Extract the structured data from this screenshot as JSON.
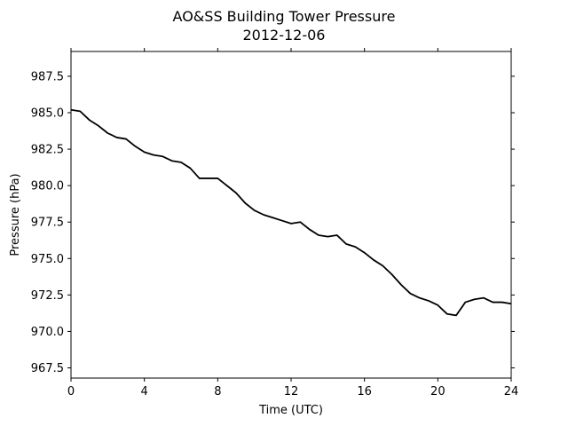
{
  "chart_data": {
    "type": "line",
    "title": "AO&SS Building Tower Pressure",
    "subtitle": "2012-12-06",
    "xlabel": "Time (UTC)",
    "ylabel": "Pressure (hPa)",
    "xlim": [
      0,
      24
    ],
    "ylim": [
      966.8,
      989.2
    ],
    "xticks": [
      0,
      4,
      8,
      12,
      16,
      20,
      24
    ],
    "xtick_labels": [
      "0",
      "4",
      "8",
      "12",
      "16",
      "20",
      "24"
    ],
    "yticks": [
      967.5,
      970.0,
      972.5,
      975.0,
      977.5,
      980.0,
      982.5,
      985.0,
      987.5
    ],
    "ytick_labels": [
      "967.5",
      "970.0",
      "972.5",
      "975.0",
      "977.5",
      "980.0",
      "982.5",
      "985.0",
      "987.5"
    ],
    "grid": false,
    "series": [
      {
        "color": "#000000",
        "x": [
          0,
          0.5,
          1.0,
          1.5,
          2.0,
          2.5,
          3.0,
          3.5,
          4.0,
          4.5,
          5.0,
          5.5,
          6.0,
          6.5,
          7.0,
          7.5,
          8.0,
          8.5,
          9.0,
          9.5,
          10.0,
          10.5,
          11.0,
          11.5,
          12.0,
          12.5,
          13.0,
          13.5,
          14.0,
          14.5,
          15.0,
          15.5,
          16.0,
          16.5,
          17.0,
          17.5,
          18.0,
          18.5,
          19.0,
          19.5,
          20.0,
          20.5,
          21.0,
          21.5,
          22.0,
          22.5,
          23.0,
          23.5,
          24.0
        ],
        "y": [
          985.2,
          985.1,
          984.5,
          984.1,
          983.6,
          983.3,
          983.2,
          982.7,
          982.3,
          982.1,
          982.0,
          981.7,
          981.6,
          981.2,
          980.5,
          980.5,
          980.5,
          980.0,
          979.5,
          978.8,
          978.3,
          978.0,
          977.8,
          977.6,
          977.4,
          977.5,
          977.0,
          976.6,
          976.5,
          976.6,
          976.0,
          975.8,
          975.4,
          974.9,
          974.5,
          973.9,
          973.2,
          972.6,
          972.3,
          972.1,
          971.8,
          971.2,
          971.1,
          972.0,
          972.2,
          972.3,
          972.0,
          972.0,
          971.9
        ]
      }
    ]
  }
}
